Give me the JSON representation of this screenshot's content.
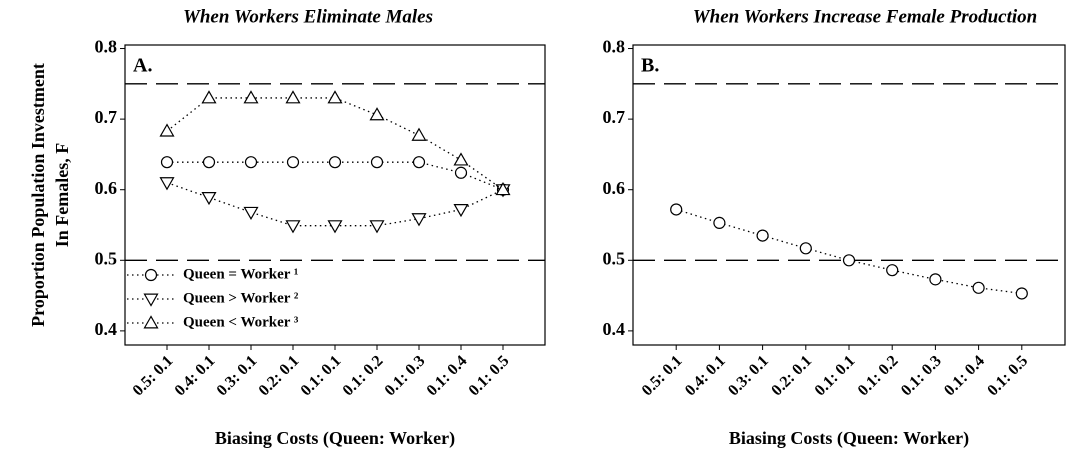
{
  "chart_data": [
    {
      "type": "line",
      "title": "When Workers Eliminate Males",
      "panel_label": "A.",
      "y_label": [
        "Proportion Population Investment",
        "In Females, F"
      ],
      "x_label": "Biasing Costs (Queen: Worker)",
      "categories": [
        "0.5: 0.1",
        "0.4: 0.1",
        "0.3: 0.1",
        "0.2: 0.1",
        "0.1: 0.1",
        "0.1: 0.2",
        "0.1: 0.3",
        "0.1: 0.4",
        "0.1: 0.5"
      ],
      "series": [
        {
          "name": "Queen = Worker ¹",
          "marker": "circle",
          "color": "#000000",
          "values": [
            0.639,
            0.639,
            0.639,
            0.639,
            0.639,
            0.639,
            0.639,
            0.624,
            0.6
          ]
        },
        {
          "name": "Queen > Worker ²",
          "marker": "triangle-down",
          "color": "#000000",
          "values": [
            0.61,
            0.589,
            0.568,
            0.549,
            0.549,
            0.549,
            0.559,
            0.572,
            0.6
          ]
        },
        {
          "name": "Queen < Worker ³",
          "marker": "triangle-up",
          "color": "#000000",
          "values": [
            0.683,
            0.73,
            0.73,
            0.73,
            0.73,
            0.706,
            0.677,
            0.642,
            0.6
          ]
        }
      ],
      "ylim": [
        0.38,
        0.805
      ],
      "yticks": [
        0.4,
        0.5,
        0.6,
        0.7,
        0.8
      ],
      "reference_lines": [
        0.75,
        0.5
      ],
      "legend": "lower left"
    },
    {
      "type": "line",
      "title": "When Workers Increase Female Production",
      "panel_label": "B.",
      "x_label": "Biasing Costs (Queen: Worker)",
      "categories": [
        "0.5: 0.1",
        "0.4: 0.1",
        "0.3: 0.1",
        "0.2: 0.1",
        "0.1: 0.1",
        "0.1: 0.2",
        "0.1: 0.3",
        "0.1: 0.4",
        "0.1: 0.5"
      ],
      "series": [
        {
          "marker": "circle",
          "color": "#000000",
          "values": [
            0.572,
            0.553,
            0.535,
            0.517,
            0.5,
            0.486,
            0.473,
            0.461,
            0.453
          ]
        }
      ],
      "ylim": [
        0.38,
        0.805
      ],
      "yticks": [
        0.4,
        0.5,
        0.6,
        0.7,
        0.8
      ],
      "reference_lines": [
        0.75,
        0.5
      ]
    }
  ]
}
